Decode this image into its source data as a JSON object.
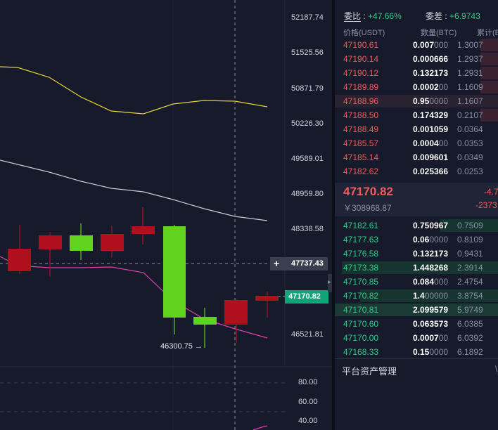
{
  "chart": {
    "y_axis_labels": [
      "52187.74",
      "51525.56",
      "50871.79",
      "50226.30",
      "49589.01",
      "48959.80",
      "48338.58",
      "46521.81"
    ],
    "crosshair_price": "47737.43",
    "crosshair_plus": "+",
    "current_price_tag": "47170.82",
    "low_annotation": "46300.75 →",
    "indicator_labels": [
      "80.00",
      "60.00",
      "40.00"
    ]
  },
  "ratio": {
    "ratio_label": "委比",
    "ratio_value": "+47.66%",
    "diff_label": "委差",
    "diff_value": "+6.9743"
  },
  "columns": {
    "price": "价格(USDT)",
    "qty": "数量(BTC)",
    "cum": "累计(B"
  },
  "asks": [
    {
      "price": "47190.61",
      "qty_bold": "0.007",
      "qty_dim": "000",
      "cum": "1.3007"
    },
    {
      "price": "47190.14",
      "qty_bold": "0.000666",
      "qty_dim": "",
      "cum": "1.2937"
    },
    {
      "price": "47190.12",
      "qty_bold": "0.132173",
      "qty_dim": "",
      "cum": "1.2931"
    },
    {
      "price": "47189.89",
      "qty_bold": "0.0002",
      "qty_dim": "00",
      "cum": "1.1609"
    },
    {
      "price": "47188.96",
      "qty_bold": "0.95",
      "qty_dim": "0000",
      "cum": "1.1607"
    },
    {
      "price": "47188.50",
      "qty_bold": "0.174329",
      "qty_dim": "",
      "cum": "0.2107"
    },
    {
      "price": "47188.49",
      "qty_bold": "0.001059",
      "qty_dim": "",
      "cum": "0.0364"
    },
    {
      "price": "47185.57",
      "qty_bold": "0.0004",
      "qty_dim": "00",
      "cum": "0.0353"
    },
    {
      "price": "47185.14",
      "qty_bold": "0.009601",
      "qty_dim": "",
      "cum": "0.0349"
    },
    {
      "price": "47182.62",
      "qty_bold": "0.025366",
      "qty_dim": "",
      "cum": "0.0253"
    }
  ],
  "last": {
    "price": "47170.82",
    "cny": "￥308968.87",
    "change": "-4.7",
    "change2": "-2373"
  },
  "bids": [
    {
      "price": "47182.61",
      "qty_bold": "0.750967",
      "qty_dim": "",
      "cum": "0.7509"
    },
    {
      "price": "47177.63",
      "qty_bold": "0.06",
      "qty_dim": "0000",
      "cum": "0.8109"
    },
    {
      "price": "47176.58",
      "qty_bold": "0.132173",
      "qty_dim": "",
      "cum": "0.9431"
    },
    {
      "price": "47173.38",
      "qty_bold": "1.448268",
      "qty_dim": "",
      "cum": "2.3914"
    },
    {
      "price": "47170.85",
      "qty_bold": "0.084",
      "qty_dim": "000",
      "cum": "2.4754"
    },
    {
      "price": "47170.82",
      "qty_bold": "1.4",
      "qty_dim": "00000",
      "cum": "3.8754"
    },
    {
      "price": "47170.81",
      "qty_bold": "2.099579",
      "qty_dim": "",
      "cum": "5.9749"
    },
    {
      "price": "47170.60",
      "qty_bold": "0.063573",
      "qty_dim": "",
      "cum": "6.0385"
    },
    {
      "price": "47170.00",
      "qty_bold": "0.0007",
      "qty_dim": "00",
      "cum": "6.0392"
    },
    {
      "price": "47168.33",
      "qty_bold": "0.15",
      "qty_dim": "0000",
      "cum": "6.1892"
    }
  ],
  "assets_label": "平台资产管理",
  "assets_tail": "\\",
  "colors": {
    "up": "#38c98b",
    "down": "#f25b5b",
    "candle_up": "#5fd31e",
    "candle_down": "#b0101e",
    "ma_yellow": "#e6d533",
    "ma_white": "#c9cbd3",
    "ma_pink": "#e040b0"
  }
}
